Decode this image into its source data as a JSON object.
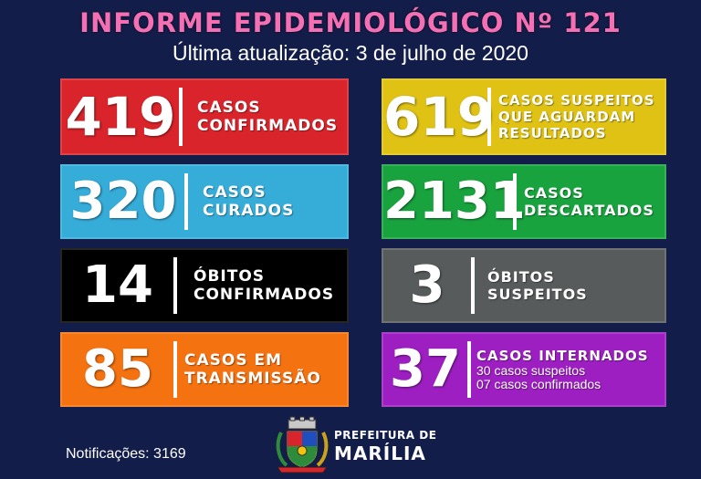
{
  "header": {
    "title": "INFORME EPIDEMIOLÓGICO Nº 121",
    "subtitle": "Última atualização: 3 de julho de 2020"
  },
  "cards": [
    {
      "value": "419",
      "label1": "CASOS",
      "label2": "CONFIRMADOS",
      "color": "#d8242a"
    },
    {
      "value": "619",
      "label1": "CASOS SUSPEITOS",
      "label2": "QUE AGUARDAM",
      "label3": "RESULTADOS",
      "color": "#dfc214"
    },
    {
      "value": "320",
      "label1": "CASOS",
      "label2": "CURADOS",
      "color": "#36acd9"
    },
    {
      "value": "2131",
      "label1": "CASOS",
      "label2": "DESCARTADOS",
      "color": "#18a33e"
    },
    {
      "value": "14",
      "label1": "ÓBITOS",
      "label2": "CONFIRMADOS",
      "color": "#000000"
    },
    {
      "value": "3",
      "label1": "ÓBITOS",
      "label2": "SUSPEITOS",
      "color": "#575b5c"
    },
    {
      "value": "85",
      "label1": "CASOS EM",
      "label2": "TRANSMISSÃO",
      "color": "#f57211"
    },
    {
      "value": "37",
      "label1": "CASOS INTERNADOS",
      "sub1": "30 casos suspeitos",
      "sub2": "07 casos confirmados",
      "color": "#9d1fc2"
    }
  ],
  "footer": {
    "notifications": "Notificações: 3169",
    "prefeitura_line1": "PREFEITURA DE",
    "prefeitura_line2": "MARÍLIA",
    "crest_icon": "city-crest-icon"
  }
}
